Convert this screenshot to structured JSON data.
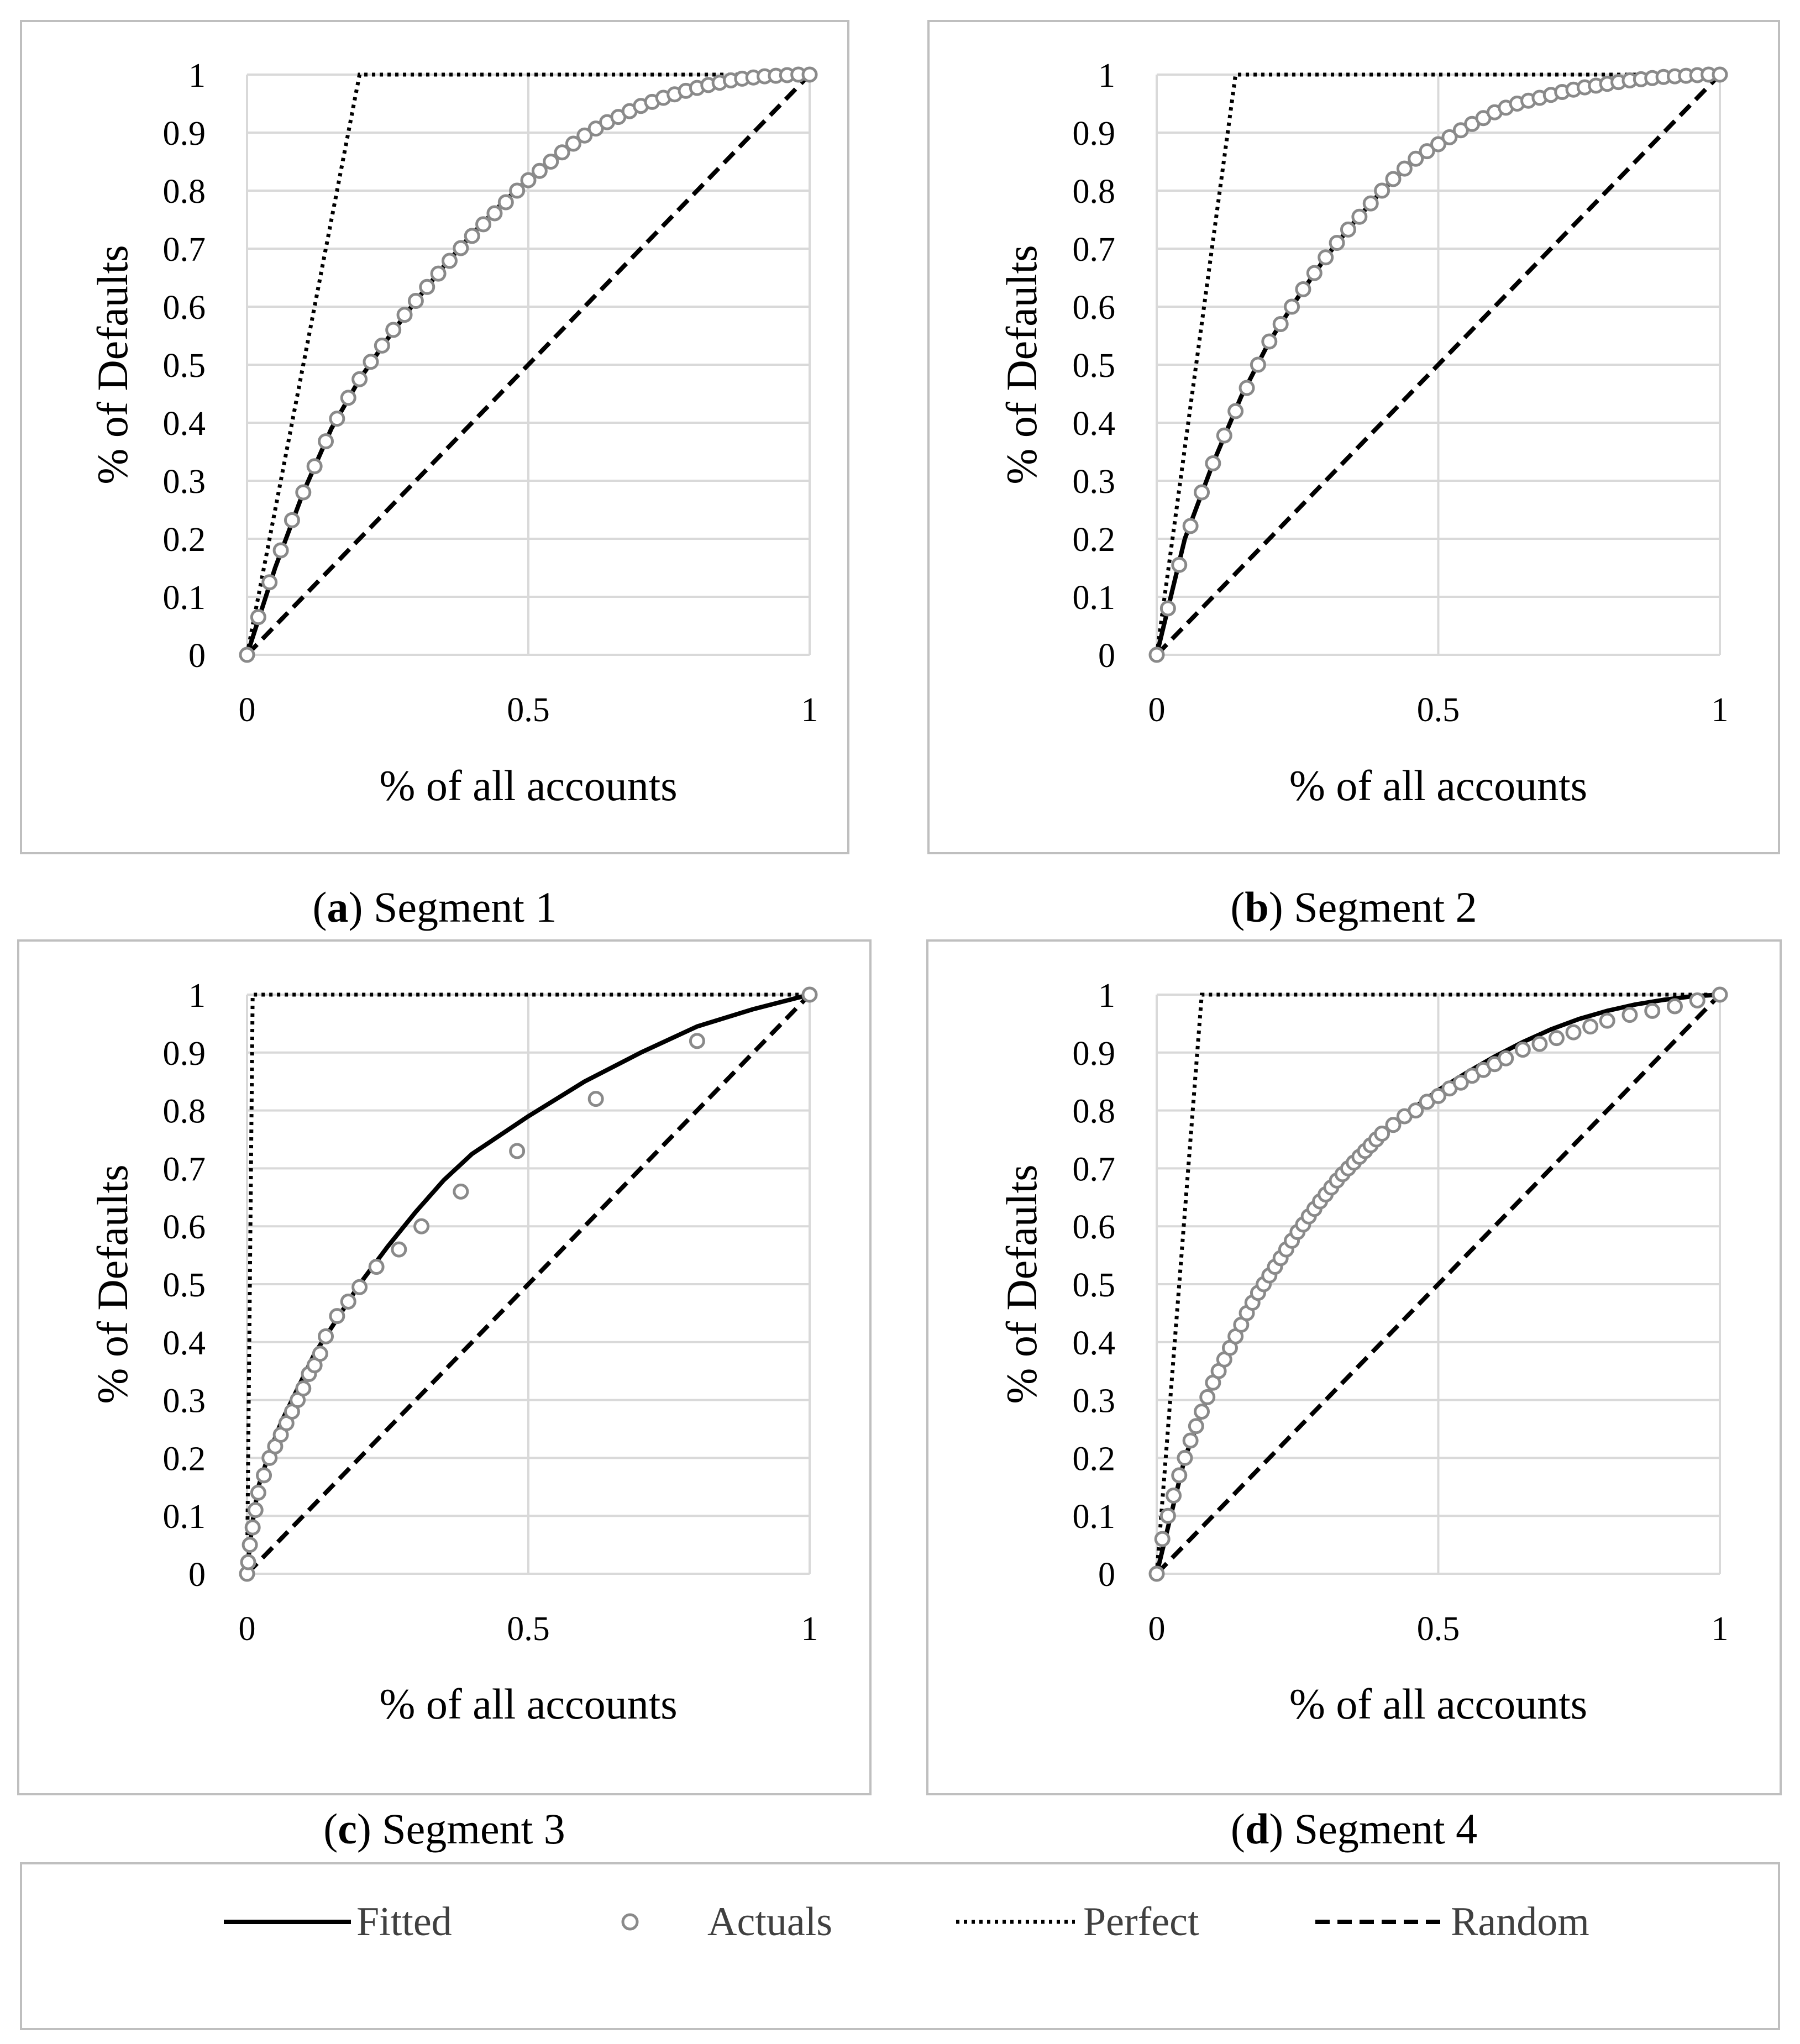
{
  "colors": {
    "fitted": "#000000",
    "actuals": "#8a8a8a",
    "perfect": "#000000",
    "random": "#000000",
    "grid": "#d9d9d9",
    "frame": "#bfbfbf",
    "text": "#404040"
  },
  "legend": {
    "items": [
      {
        "key": "fitted",
        "label": "Fitted",
        "style": "solid-line"
      },
      {
        "key": "actuals",
        "label": "Actuals",
        "style": "hollow-circle-marker"
      },
      {
        "key": "perfect",
        "label": "Perfect",
        "style": "dotted-line"
      },
      {
        "key": "random",
        "label": "Random",
        "style": "dashed-line"
      }
    ]
  },
  "chart_data": [
    {
      "id": "a",
      "type": "line",
      "caption_letter": "a",
      "caption_text": ") Segment 1",
      "xlabel": "% of all accounts",
      "ylabel": "% of Defaults",
      "xlim": [
        0,
        1
      ],
      "ylim": [
        0,
        1
      ],
      "x_ticks": [
        0,
        0.5,
        1
      ],
      "x_tick_labels": [
        "0",
        "0.5",
        "1"
      ],
      "y_ticks": [
        0,
        0.1,
        0.2,
        0.3,
        0.4,
        0.5,
        0.6,
        0.7,
        0.8,
        0.9,
        1
      ],
      "y_tick_labels": [
        "0",
        "0.1",
        "0.2",
        "0.3",
        "0.4",
        "0.5",
        "0.6",
        "0.7",
        "0.8",
        "0.9",
        "1"
      ],
      "grid": true,
      "series": [
        {
          "name": "Perfect",
          "x": [
            0,
            0.2,
            1
          ],
          "y": [
            0,
            1,
            1
          ]
        },
        {
          "name": "Random",
          "x": [
            0,
            1
          ],
          "y": [
            0,
            1
          ]
        },
        {
          "name": "Fitted",
          "x": [
            0,
            0.05,
            0.1,
            0.15,
            0.2,
            0.25,
            0.3,
            0.35,
            0.4,
            0.45,
            0.5,
            0.55,
            0.6,
            0.65,
            0.7,
            0.75,
            0.8,
            0.85,
            0.9,
            0.95,
            1
          ],
          "y": [
            0,
            0.15,
            0.28,
            0.39,
            0.475,
            0.545,
            0.61,
            0.67,
            0.725,
            0.775,
            0.82,
            0.86,
            0.895,
            0.925,
            0.95,
            0.968,
            0.982,
            0.991,
            0.997,
            0.999,
            1
          ]
        },
        {
          "name": "Actuals",
          "x": [
            0,
            0.02,
            0.04,
            0.06,
            0.08,
            0.1,
            0.12,
            0.14,
            0.16,
            0.18,
            0.2,
            0.22,
            0.24,
            0.26,
            0.28,
            0.3,
            0.32,
            0.34,
            0.36,
            0.38,
            0.4,
            0.42,
            0.44,
            0.46,
            0.48,
            0.5,
            0.52,
            0.54,
            0.56,
            0.58,
            0.6,
            0.62,
            0.64,
            0.66,
            0.68,
            0.7,
            0.72,
            0.74,
            0.76,
            0.78,
            0.8,
            0.82,
            0.84,
            0.86,
            0.88,
            0.9,
            0.92,
            0.94,
            0.96,
            0.98,
            1
          ],
          "y": [
            0,
            0.065,
            0.125,
            0.18,
            0.232,
            0.28,
            0.325,
            0.368,
            0.407,
            0.443,
            0.475,
            0.505,
            0.533,
            0.56,
            0.586,
            0.61,
            0.634,
            0.657,
            0.679,
            0.701,
            0.722,
            0.742,
            0.761,
            0.78,
            0.8,
            0.818,
            0.834,
            0.85,
            0.866,
            0.881,
            0.895,
            0.907,
            0.918,
            0.927,
            0.937,
            0.946,
            0.953,
            0.96,
            0.966,
            0.972,
            0.977,
            0.982,
            0.986,
            0.99,
            0.993,
            0.995,
            0.997,
            0.998,
            0.999,
            1,
            1
          ]
        }
      ]
    },
    {
      "id": "b",
      "type": "line",
      "caption_letter": "b",
      "caption_text": ") Segment 2",
      "xlabel": "% of all accounts",
      "ylabel": "% of Defaults",
      "xlim": [
        0,
        1
      ],
      "ylim": [
        0,
        1
      ],
      "x_ticks": [
        0,
        0.5,
        1
      ],
      "x_tick_labels": [
        "0",
        "0.5",
        "1"
      ],
      "y_ticks": [
        0,
        0.1,
        0.2,
        0.3,
        0.4,
        0.5,
        0.6,
        0.7,
        0.8,
        0.9,
        1
      ],
      "y_tick_labels": [
        "0",
        "0.1",
        "0.2",
        "0.3",
        "0.4",
        "0.5",
        "0.6",
        "0.7",
        "0.8",
        "0.9",
        "1"
      ],
      "grid": true,
      "series": [
        {
          "name": "Perfect",
          "x": [
            0,
            0.14,
            1
          ],
          "y": [
            0,
            1,
            1
          ]
        },
        {
          "name": "Random",
          "x": [
            0,
            1
          ],
          "y": [
            0,
            1
          ]
        },
        {
          "name": "Fitted",
          "x": [
            0,
            0.05,
            0.1,
            0.15,
            0.2,
            0.25,
            0.3,
            0.35,
            0.4,
            0.45,
            0.5,
            0.55,
            0.6,
            0.65,
            0.7,
            0.75,
            0.8,
            0.85,
            0.9,
            0.95,
            1
          ],
          "y": [
            0,
            0.2,
            0.33,
            0.445,
            0.54,
            0.615,
            0.685,
            0.745,
            0.8,
            0.845,
            0.88,
            0.91,
            0.935,
            0.955,
            0.97,
            0.982,
            0.99,
            0.995,
            0.998,
            0.999,
            1
          ]
        },
        {
          "name": "Actuals",
          "x": [
            0,
            0.02,
            0.04,
            0.06,
            0.08,
            0.1,
            0.12,
            0.14,
            0.16,
            0.18,
            0.2,
            0.22,
            0.24,
            0.26,
            0.28,
            0.3,
            0.32,
            0.34,
            0.36,
            0.38,
            0.4,
            0.42,
            0.44,
            0.46,
            0.48,
            0.5,
            0.52,
            0.54,
            0.56,
            0.58,
            0.6,
            0.62,
            0.64,
            0.66,
            0.68,
            0.7,
            0.72,
            0.74,
            0.76,
            0.78,
            0.8,
            0.82,
            0.84,
            0.86,
            0.88,
            0.9,
            0.92,
            0.94,
            0.96,
            0.98,
            1
          ],
          "y": [
            0,
            0.08,
            0.155,
            0.222,
            0.28,
            0.33,
            0.378,
            0.42,
            0.46,
            0.5,
            0.54,
            0.57,
            0.6,
            0.63,
            0.658,
            0.685,
            0.71,
            0.733,
            0.755,
            0.778,
            0.8,
            0.82,
            0.838,
            0.855,
            0.868,
            0.88,
            0.892,
            0.904,
            0.915,
            0.925,
            0.935,
            0.943,
            0.95,
            0.955,
            0.96,
            0.965,
            0.97,
            0.974,
            0.978,
            0.981,
            0.984,
            0.987,
            0.99,
            0.992,
            0.994,
            0.996,
            0.997,
            0.998,
            0.999,
            1,
            1
          ]
        }
      ]
    },
    {
      "id": "c",
      "type": "line",
      "caption_letter": "c",
      "caption_text": ") Segment 3",
      "xlabel": "% of all accounts",
      "ylabel": "% of Defaults",
      "xlim": [
        0,
        1
      ],
      "ylim": [
        0,
        1
      ],
      "x_ticks": [
        0,
        0.5,
        1
      ],
      "x_tick_labels": [
        "0",
        "0.5",
        "1"
      ],
      "y_ticks": [
        0,
        0.1,
        0.2,
        0.3,
        0.4,
        0.5,
        0.6,
        0.7,
        0.8,
        0.9,
        1
      ],
      "y_tick_labels": [
        "0",
        "0.1",
        "0.2",
        "0.3",
        "0.4",
        "0.5",
        "0.6",
        "0.7",
        "0.8",
        "0.9",
        "1"
      ],
      "grid": true,
      "series": [
        {
          "name": "Perfect",
          "x": [
            0,
            0.01,
            1
          ],
          "y": [
            0,
            1,
            1
          ]
        },
        {
          "name": "Random",
          "x": [
            0,
            1
          ],
          "y": [
            0,
            1
          ]
        },
        {
          "name": "Fitted",
          "x": [
            0,
            0.005,
            0.01,
            0.02,
            0.04,
            0.06,
            0.08,
            0.1,
            0.12,
            0.14,
            0.16,
            0.18,
            0.2,
            0.25,
            0.3,
            0.35,
            0.4,
            0.5,
            0.6,
            0.7,
            0.8,
            0.9,
            1
          ],
          "y": [
            0,
            0.05,
            0.09,
            0.15,
            0.21,
            0.26,
            0.3,
            0.34,
            0.38,
            0.41,
            0.44,
            0.47,
            0.5,
            0.565,
            0.625,
            0.68,
            0.725,
            0.79,
            0.85,
            0.9,
            0.945,
            0.975,
            1
          ]
        },
        {
          "name": "Actuals",
          "x": [
            0,
            0.002,
            0.005,
            0.01,
            0.015,
            0.02,
            0.03,
            0.04,
            0.05,
            0.06,
            0.07,
            0.08,
            0.09,
            0.1,
            0.11,
            0.12,
            0.13,
            0.14,
            0.16,
            0.18,
            0.2,
            0.23,
            0.27,
            0.31,
            0.38,
            0.48,
            0.62,
            0.8,
            1
          ],
          "y": [
            0,
            0.02,
            0.05,
            0.08,
            0.11,
            0.14,
            0.17,
            0.2,
            0.22,
            0.24,
            0.26,
            0.28,
            0.3,
            0.32,
            0.345,
            0.36,
            0.38,
            0.41,
            0.445,
            0.47,
            0.495,
            0.53,
            0.56,
            0.6,
            0.66,
            0.73,
            0.82,
            0.92,
            1
          ]
        }
      ]
    },
    {
      "id": "d",
      "type": "line",
      "caption_letter": "d",
      "caption_text": ") Segment 4",
      "xlabel": "% of all accounts",
      "ylabel": "% of Defaults",
      "xlim": [
        0,
        1
      ],
      "ylim": [
        0,
        1
      ],
      "x_ticks": [
        0,
        0.5,
        1
      ],
      "x_tick_labels": [
        "0",
        "0.5",
        "1"
      ],
      "y_ticks": [
        0,
        0.1,
        0.2,
        0.3,
        0.4,
        0.5,
        0.6,
        0.7,
        0.8,
        0.9,
        1
      ],
      "y_tick_labels": [
        "0",
        "0.1",
        "0.2",
        "0.3",
        "0.4",
        "0.5",
        "0.6",
        "0.7",
        "0.8",
        "0.9",
        "1"
      ],
      "grid": true,
      "series": [
        {
          "name": "Perfect",
          "x": [
            0,
            0.08,
            1
          ],
          "y": [
            0,
            1,
            1
          ]
        },
        {
          "name": "Random",
          "x": [
            0,
            1
          ],
          "y": [
            0,
            1
          ]
        },
        {
          "name": "Fitted",
          "x": [
            0,
            0.05,
            0.1,
            0.15,
            0.2,
            0.25,
            0.3,
            0.35,
            0.4,
            0.45,
            0.5,
            0.55,
            0.6,
            0.65,
            0.7,
            0.75,
            0.8,
            0.85,
            0.9,
            0.95,
            1
          ],
          "y": [
            0,
            0.2,
            0.33,
            0.435,
            0.52,
            0.59,
            0.65,
            0.705,
            0.755,
            0.8,
            0.835,
            0.865,
            0.893,
            0.918,
            0.94,
            0.958,
            0.972,
            0.983,
            0.991,
            0.997,
            1
          ]
        },
        {
          "name": "Actuals",
          "x": [
            0,
            0.01,
            0.02,
            0.03,
            0.04,
            0.05,
            0.06,
            0.07,
            0.08,
            0.09,
            0.1,
            0.11,
            0.12,
            0.13,
            0.14,
            0.15,
            0.16,
            0.17,
            0.18,
            0.19,
            0.2,
            0.21,
            0.22,
            0.23,
            0.24,
            0.25,
            0.26,
            0.27,
            0.28,
            0.29,
            0.3,
            0.31,
            0.32,
            0.33,
            0.34,
            0.35,
            0.36,
            0.37,
            0.38,
            0.39,
            0.4,
            0.42,
            0.44,
            0.46,
            0.48,
            0.5,
            0.52,
            0.54,
            0.56,
            0.58,
            0.6,
            0.62,
            0.65,
            0.68,
            0.71,
            0.74,
            0.77,
            0.8,
            0.84,
            0.88,
            0.92,
            0.96,
            1
          ],
          "y": [
            0,
            0.06,
            0.1,
            0.135,
            0.17,
            0.2,
            0.23,
            0.255,
            0.28,
            0.305,
            0.33,
            0.35,
            0.37,
            0.39,
            0.41,
            0.43,
            0.45,
            0.468,
            0.485,
            0.5,
            0.515,
            0.53,
            0.545,
            0.56,
            0.575,
            0.59,
            0.603,
            0.617,
            0.63,
            0.643,
            0.655,
            0.667,
            0.679,
            0.69,
            0.7,
            0.71,
            0.72,
            0.73,
            0.74,
            0.75,
            0.76,
            0.775,
            0.79,
            0.8,
            0.815,
            0.825,
            0.838,
            0.848,
            0.86,
            0.87,
            0.88,
            0.89,
            0.905,
            0.915,
            0.925,
            0.935,
            0.945,
            0.955,
            0.965,
            0.972,
            0.98,
            0.99,
            1
          ]
        }
      ]
    }
  ]
}
